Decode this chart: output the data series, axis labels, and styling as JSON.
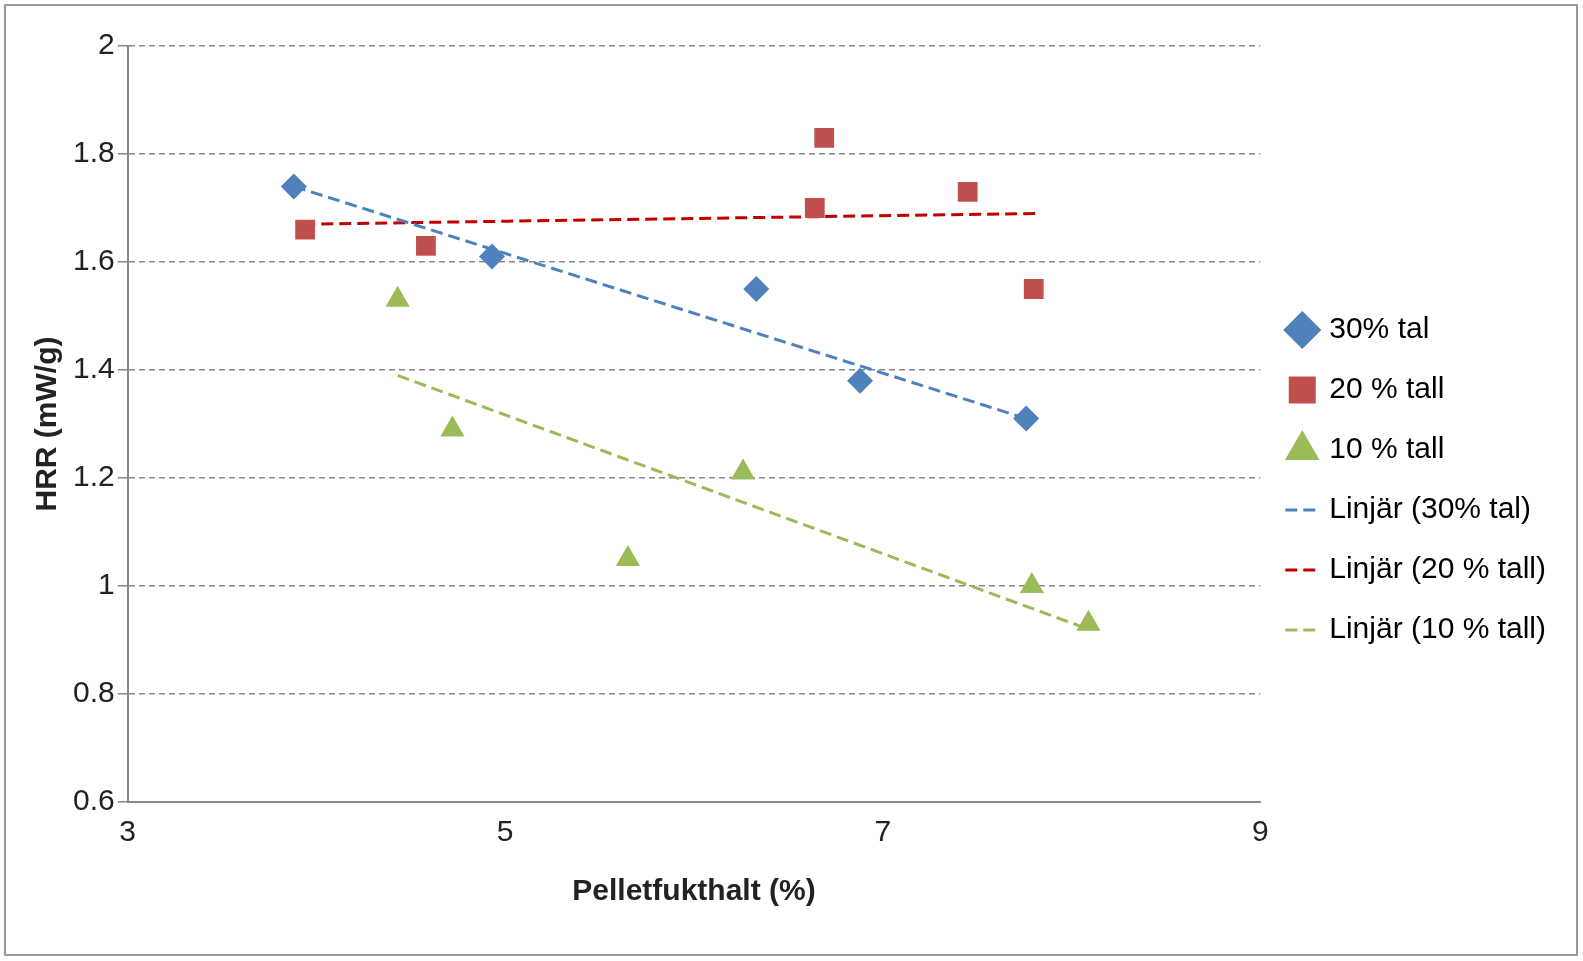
{
  "chart_data": {
    "type": "scatter",
    "xlabel": "Pelletfukthalt (%)",
    "ylabel": "HRR (mW/g)",
    "xlim": [
      3,
      9
    ],
    "xticks": [
      3,
      5,
      7,
      9
    ],
    "ylim": [
      0.6,
      2
    ],
    "yticks": [
      0.6,
      0.8,
      1,
      1.2,
      1.4,
      1.6,
      1.8,
      2
    ],
    "grid": "y",
    "legend": "right",
    "series": [
      {
        "name": "30% tal",
        "color": "#4f81bd",
        "marker": "diamond",
        "x": [
          3.88,
          4.93,
          6.33,
          6.88,
          7.76
        ],
        "values": [
          1.74,
          1.61,
          1.55,
          1.38,
          1.31
        ]
      },
      {
        "name": "20 % tall",
        "color": "#c0504d",
        "marker": "square",
        "x": [
          3.94,
          4.58,
          6.64,
          6.69,
          7.45,
          7.8
        ],
        "values": [
          1.66,
          1.63,
          1.7,
          1.83,
          1.73,
          1.55
        ]
      },
      {
        "name": "10 % tall",
        "color": "#9bbb59",
        "marker": "triangle",
        "x": [
          4.43,
          4.72,
          5.65,
          6.26,
          7.79,
          8.09
        ],
        "values": [
          1.53,
          1.29,
          1.05,
          1.21,
          1.0,
          0.93
        ]
      },
      {
        "name": "Linjär (30% tal)",
        "type": "line",
        "color": "#4f81bd",
        "marker": "none",
        "line_style": "dashed",
        "x": [
          3.88,
          7.76
        ],
        "values": [
          1.74,
          1.31
        ]
      },
      {
        "name": "Linjär (20 % tall)",
        "type": "line",
        "color": "#c00000",
        "marker": "none",
        "line_style": "dashed",
        "x": [
          3.93,
          7.83
        ],
        "values": [
          1.67,
          1.69
        ]
      },
      {
        "name": "Linjär (10 % tall)",
        "type": "line",
        "color": "#9bbb59",
        "marker": "none",
        "line_style": "dashed",
        "x": [
          4.43,
          8.09
        ],
        "values": [
          1.39,
          0.92
        ]
      }
    ]
  }
}
